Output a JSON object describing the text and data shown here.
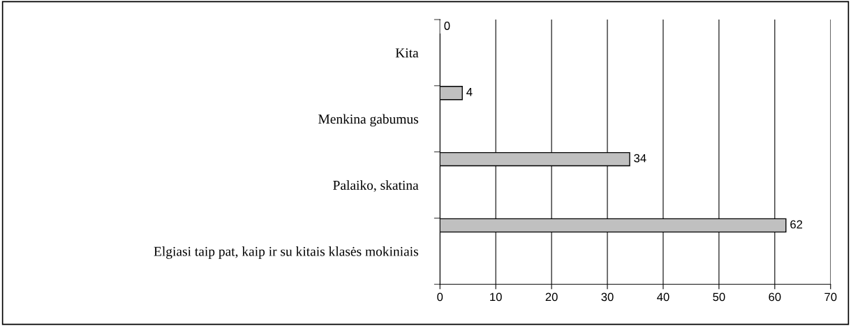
{
  "chart_data": {
    "type": "bar",
    "orientation": "horizontal",
    "categories": [
      "Kita",
      "Menkina gabumus",
      "Palaiko, skatina",
      "Elgiasi taip pat, kaip ir su kitais klasės mokiniais"
    ],
    "values": [
      0,
      4,
      34,
      62
    ],
    "color": "#c0c0c0",
    "xlim": [
      0,
      70
    ],
    "xticks": [
      0,
      10,
      20,
      30,
      40,
      50,
      60,
      70
    ],
    "grid": "x",
    "data_labels": true
  }
}
